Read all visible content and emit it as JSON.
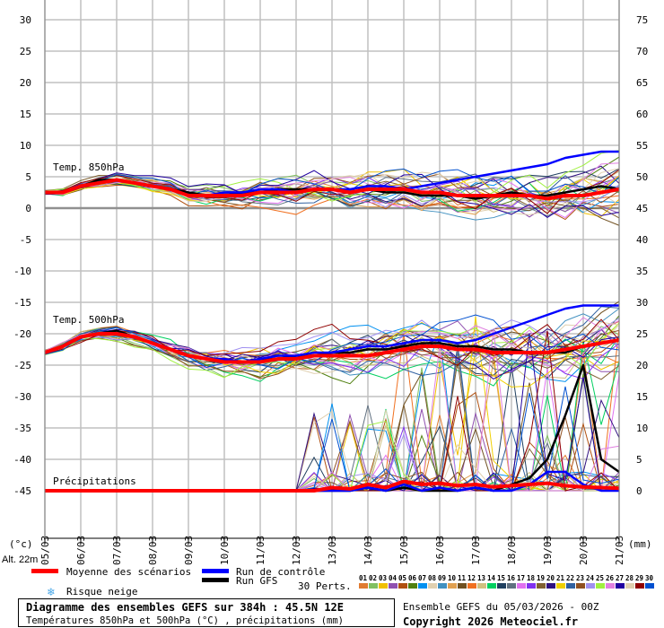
{
  "chart_data": {
    "type": "line",
    "title": "Diagramme des ensembles GEFS sur 384h : 45.5N 12E",
    "subtitle": "Températures 850hPa et 500hPa (°C) , précipitations (mm)",
    "run_info": "Ensemble GEFS du 05/03/2026 - 00Z",
    "copyright": "Copyright 2026 Meteociel.fr",
    "altitude": "Alt. 22m",
    "left_unit": "(°c)",
    "right_unit": "(mm)",
    "left_axis": {
      "range": [
        -45,
        30
      ],
      "ticks": [
        "30",
        "25",
        "20",
        "15",
        "10",
        "5",
        "0",
        "-5",
        "-10",
        "-15",
        "-20",
        "-25",
        "-30",
        "-35",
        "-40",
        "-45"
      ]
    },
    "right_axis": {
      "range": [
        0,
        75
      ],
      "ticks": [
        "75",
        "70",
        "65",
        "60",
        "55",
        "50",
        "45",
        "40",
        "35",
        "30",
        "25",
        "20",
        "15",
        "10",
        "5",
        "0"
      ]
    },
    "x_labels": [
      "05/03",
      "06/03",
      "07/03",
      "08/03",
      "09/03",
      "10/03",
      "11/03",
      "12/03",
      "13/03",
      "14/03",
      "15/03",
      "16/03",
      "17/03",
      "18/03",
      "19/03",
      "20/03",
      "21/03"
    ],
    "x_step_hours": 12,
    "panel_labels": {
      "t850": "Temp. 850hPa",
      "t500": "Temp. 500hPa",
      "precip": "Précipitations"
    },
    "series": [
      {
        "name": "Moyenne des scénarios",
        "key": "mean",
        "color": "#ff0000",
        "t850": [
          2.5,
          2.5,
          3.5,
          4,
          4.5,
          4,
          3.5,
          3,
          2,
          2,
          2,
          2,
          2.5,
          2.5,
          2.5,
          3,
          3,
          2.5,
          3,
          3,
          3,
          2.5,
          2.5,
          2,
          2,
          2,
          2,
          2,
          1.5,
          2,
          2,
          2.5,
          3
        ],
        "t500": [
          -23,
          -22,
          -20.5,
          -20,
          -20,
          -20.5,
          -21.5,
          -22.5,
          -23.5,
          -24,
          -24.5,
          -24.5,
          -24.5,
          -24,
          -24,
          -23.5,
          -23.5,
          -23.5,
          -23.5,
          -23,
          -22.5,
          -22,
          -22,
          -22.5,
          -22.5,
          -23,
          -23,
          -23,
          -23,
          -22.5,
          -22,
          -21.5,
          -21
        ],
        "precip": [
          0,
          0,
          0,
          0,
          0,
          0,
          0,
          0,
          0,
          0,
          0,
          0,
          0,
          0,
          0,
          0,
          0.5,
          0.3,
          1,
          0.5,
          1.5,
          1,
          1.2,
          0.8,
          1,
          0.6,
          0.8,
          1,
          1.2,
          0.8,
          0.6,
          0.5,
          0.4
        ]
      },
      {
        "name": "Run de contrôle",
        "key": "control",
        "color": "#0000ff",
        "t850": [
          2.5,
          2.5,
          3.5,
          4,
          4.5,
          4,
          3.5,
          3,
          2,
          2,
          2.5,
          2.5,
          3,
          3,
          2.5,
          3,
          3,
          3,
          3.5,
          3.5,
          3,
          3.5,
          4,
          4.5,
          5,
          5.5,
          6,
          6.5,
          7,
          8,
          8.5,
          9,
          9
        ],
        "t500": [
          -23,
          -22,
          -20.5,
          -20,
          -20,
          -20.5,
          -21.5,
          -22.5,
          -23.5,
          -24,
          -24,
          -24.5,
          -24,
          -23.5,
          -23.5,
          -23,
          -23,
          -22.5,
          -22,
          -22,
          -21.5,
          -21,
          -21,
          -21.5,
          -21,
          -20,
          -19,
          -18,
          -17,
          -16,
          -15.5,
          -15.5,
          -15.5
        ],
        "precip": [
          0,
          0,
          0,
          0,
          0,
          0,
          0,
          0,
          0,
          0,
          0,
          0,
          0,
          0,
          0,
          0,
          0,
          0,
          0.5,
          0,
          1,
          0,
          0.5,
          0,
          0.5,
          0,
          0,
          1,
          3,
          3,
          1,
          0,
          0
        ]
      },
      {
        "name": "Run GFS",
        "key": "gfs",
        "color": "#000000",
        "t850": [
          2.5,
          2.5,
          3.5,
          4.5,
          4.5,
          4,
          3.5,
          3,
          2.5,
          2,
          2,
          2.5,
          2.5,
          3,
          3,
          3,
          3,
          2.5,
          3,
          2.5,
          2.5,
          2,
          2,
          2,
          1.5,
          2,
          2.5,
          2,
          2,
          2.5,
          3,
          3.5,
          3
        ],
        "t500": [
          -23,
          -22,
          -20.5,
          -20,
          -19.5,
          -20.5,
          -21.5,
          -22.5,
          -23.5,
          -24,
          -24.5,
          -24.5,
          -24,
          -24,
          -23.5,
          -23.5,
          -23,
          -23,
          -22.5,
          -22.5,
          -22,
          -21.5,
          -21.5,
          -22,
          -22,
          -22.5,
          -22.5,
          -23,
          -23,
          -23,
          -22,
          -21.5,
          -21
        ],
        "precip": [
          0,
          0,
          0,
          0,
          0,
          0,
          0,
          0,
          0,
          0,
          0,
          0,
          0,
          0,
          0,
          0,
          0,
          0,
          0.5,
          0,
          0.5,
          0,
          0,
          0,
          0.5,
          0,
          1,
          2,
          5,
          12,
          20,
          5,
          3
        ]
      }
    ],
    "perturbations": {
      "label": "30 Perts.",
      "ids": [
        "01",
        "02",
        "03",
        "04",
        "05",
        "06",
        "07",
        "08",
        "09",
        "10",
        "11",
        "12",
        "13",
        "14",
        "15",
        "16",
        "17",
        "18",
        "19",
        "20",
        "21",
        "22",
        "23",
        "24",
        "25",
        "26",
        "27",
        "28",
        "29",
        "30"
      ],
      "colors": [
        "#e07b30",
        "#80c060",
        "#f0c000",
        "#9050b0",
        "#b05010",
        "#508010",
        "#0090f0",
        "#e0d0b0",
        "#4090c0",
        "#e0a050",
        "#705020",
        "#f07020",
        "#d0c080",
        "#00d060",
        "#204060",
        "#607080",
        "#e070f0",
        "#8030f0",
        "#806030",
        "#301080",
        "#f0d000",
        "#3060a0",
        "#905020",
        "#a090f0",
        "#a0f040",
        "#e080e0",
        "#2000a0",
        "#e0d0b0",
        "#900000",
        "#0050d0"
      ]
    },
    "legend": {
      "mean": "Moyenne des scénarios",
      "control": "Run de contrôle",
      "gfs": "Run GFS",
      "snow": "Risque neige"
    }
  }
}
